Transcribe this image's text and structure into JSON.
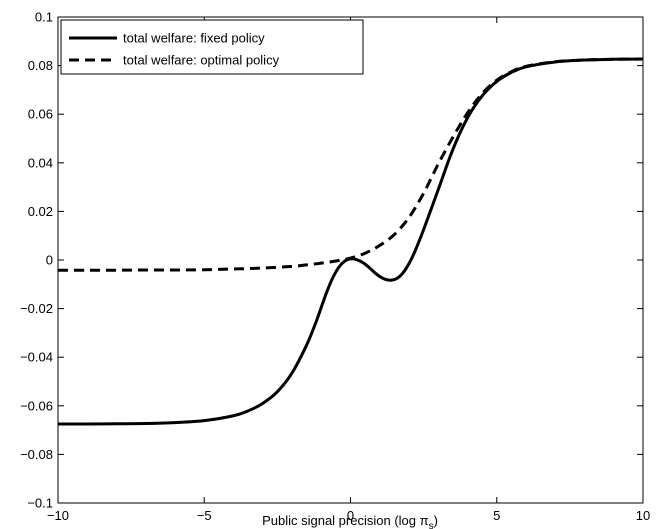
{
  "chart_data": {
    "type": "line",
    "title": "",
    "xlabel": "Public signal precision (log π",
    "xlabel_subscript": "s",
    "xlabel_close": ")",
    "ylabel": "",
    "xlim": [
      -10,
      10
    ],
    "ylim": [
      -0.1,
      0.1
    ],
    "x_ticks": [
      -10,
      -5,
      0,
      5,
      10
    ],
    "x_tick_labels": [
      "−10",
      "−5",
      "0",
      "5",
      "10"
    ],
    "y_ticks": [
      -0.1,
      -0.08,
      -0.06,
      -0.04,
      -0.02,
      0,
      0.02,
      0.04,
      0.06,
      0.08,
      0.1
    ],
    "y_tick_labels": [
      "−0.1",
      "−0.08",
      "−0.06",
      "−0.04",
      "−0.02",
      "0",
      "0.02",
      "0.04",
      "0.06",
      "0.08",
      "0.1"
    ],
    "grid": false,
    "legend_position": "top-left",
    "series": [
      {
        "name": "total welfare: fixed policy",
        "line_style": "solid",
        "color": "#000000",
        "points": [
          [
            -10,
            -0.0675
          ],
          [
            -9,
            -0.0675
          ],
          [
            -8,
            -0.0674
          ],
          [
            -7,
            -0.0673
          ],
          [
            -6,
            -0.0669
          ],
          [
            -5,
            -0.0661
          ],
          [
            -4,
            -0.0641
          ],
          [
            -3.5,
            -0.0621
          ],
          [
            -3,
            -0.059
          ],
          [
            -2.5,
            -0.0542
          ],
          [
            -2,
            -0.0465
          ],
          [
            -1.5,
            -0.035
          ],
          [
            -1.2,
            -0.0262
          ],
          [
            -1,
            -0.0195
          ],
          [
            -0.8,
            -0.0128
          ],
          [
            -0.6,
            -0.0072
          ],
          [
            -0.4,
            -0.003
          ],
          [
            -0.2,
            -0.0005
          ],
          [
            0,
            0.0005
          ],
          [
            0.2,
            0.0002
          ],
          [
            0.4,
            -0.0009
          ],
          [
            0.6,
            -0.0027
          ],
          [
            0.8,
            -0.0049
          ],
          [
            1,
            -0.0068
          ],
          [
            1.2,
            -0.008
          ],
          [
            1.4,
            -0.0083
          ],
          [
            1.6,
            -0.0075
          ],
          [
            1.8,
            -0.0052
          ],
          [
            2,
            -0.0015
          ],
          [
            2.2,
            0.0035
          ],
          [
            2.5,
            0.0125
          ],
          [
            3,
            0.029
          ],
          [
            3.5,
            0.0455
          ],
          [
            4,
            0.0585
          ],
          [
            4.5,
            0.0675
          ],
          [
            5,
            0.0735
          ],
          [
            5.5,
            0.0772
          ],
          [
            6,
            0.0795
          ],
          [
            7,
            0.0815
          ],
          [
            8,
            0.0823
          ],
          [
            9,
            0.0826
          ],
          [
            10,
            0.0827
          ]
        ]
      },
      {
        "name": "total welfare: optimal policy",
        "line_style": "dashed",
        "color": "#000000",
        "points": [
          [
            -10,
            -0.0042
          ],
          [
            -9,
            -0.0042
          ],
          [
            -8,
            -0.0042
          ],
          [
            -7,
            -0.0041
          ],
          [
            -6,
            -0.0041
          ],
          [
            -5,
            -0.004
          ],
          [
            -4,
            -0.0037
          ],
          [
            -3,
            -0.0033
          ],
          [
            -2,
            -0.0026
          ],
          [
            -1.5,
            -0.002
          ],
          [
            -1,
            -0.0013
          ],
          [
            -0.5,
            -0.0004
          ],
          [
            0,
            0.0008
          ],
          [
            0.5,
            0.0028
          ],
          [
            1,
            0.006
          ],
          [
            1.5,
            0.0105
          ],
          [
            2,
            0.0175
          ],
          [
            2.5,
            0.0275
          ],
          [
            3,
            0.0395
          ],
          [
            3.5,
            0.0505
          ],
          [
            4,
            0.0605
          ],
          [
            4.5,
            0.0685
          ],
          [
            5,
            0.074
          ],
          [
            5.5,
            0.0775
          ],
          [
            6,
            0.0797
          ],
          [
            7,
            0.0816
          ],
          [
            8,
            0.0823
          ],
          [
            9,
            0.0826
          ],
          [
            10,
            0.0827
          ]
        ]
      }
    ]
  }
}
